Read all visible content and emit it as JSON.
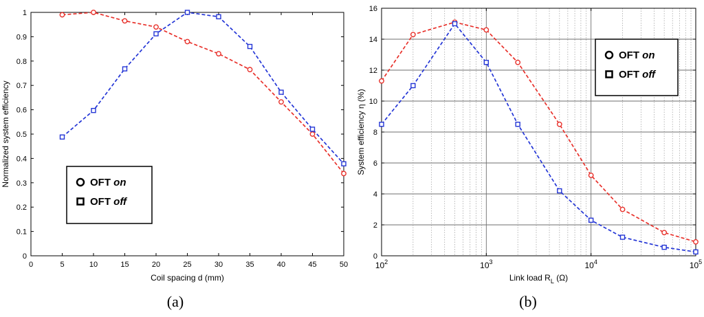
{
  "chart_data": [
    {
      "panel_label": "(a)",
      "type": "line",
      "xlabel": "Coil spacing d (mm)",
      "ylabel": "Normalized system efficiency",
      "xlim": [
        0,
        50
      ],
      "ylim": [
        0,
        1
      ],
      "xticks": [
        0,
        5,
        10,
        15,
        20,
        25,
        30,
        35,
        40,
        45,
        50
      ],
      "yticks": [
        0,
        0.1,
        0.2,
        0.3,
        0.4,
        0.5,
        0.6,
        0.7,
        0.8,
        0.9,
        1
      ],
      "grid": false,
      "legend_position": "lower-left",
      "x": [
        5,
        10,
        15,
        20,
        25,
        30,
        35,
        40,
        45,
        50
      ],
      "series": [
        {
          "name": "OFT on",
          "name_prefix": "OFT",
          "name_emph": "on",
          "marker": "circle",
          "color": "#e8302a",
          "values": [
            0.99,
            1.0,
            0.965,
            0.94,
            0.88,
            0.83,
            0.765,
            0.632,
            0.5,
            0.338
          ]
        },
        {
          "name": "OFT off",
          "name_prefix": "OFT",
          "name_emph": "off",
          "marker": "square",
          "color": "#2335d6",
          "values": [
            0.488,
            0.597,
            0.768,
            0.912,
            1.0,
            0.982,
            0.86,
            0.672,
            0.52,
            0.378
          ]
        }
      ]
    },
    {
      "panel_label": "(b)",
      "type": "line",
      "xlabel": "Link load R",
      "xlabel_sub": "L",
      "xlabel_unit": "(Ω)",
      "ylabel": "System efficiency η (%)",
      "xscale": "log",
      "xlim": [
        100,
        100000
      ],
      "ylim": [
        0,
        16
      ],
      "xticks": [
        100,
        1000,
        10000,
        100000
      ],
      "xtick_labels": [
        {
          "base": "10",
          "exp": "2"
        },
        {
          "base": "10",
          "exp": "3"
        },
        {
          "base": "10",
          "exp": "4"
        },
        {
          "base": "10",
          "exp": "5"
        }
      ],
      "yticks": [
        0,
        2,
        4,
        6,
        8,
        10,
        12,
        14,
        16
      ],
      "grid": true,
      "minor_grid": true,
      "legend_position": "top-right",
      "x": [
        100,
        200,
        500,
        1000,
        2000,
        5000,
        10000,
        20000,
        50000,
        100000
      ],
      "series": [
        {
          "name": "OFT on",
          "name_prefix": "OFT",
          "name_emph": "on",
          "marker": "circle",
          "color": "#e8302a",
          "values": [
            11.3,
            14.3,
            15.1,
            14.6,
            12.5,
            8.5,
            5.2,
            3.0,
            1.5,
            0.9
          ]
        },
        {
          "name": "OFT off",
          "name_prefix": "OFT",
          "name_emph": "off",
          "marker": "square",
          "color": "#2335d6",
          "values": [
            8.5,
            11.0,
            15.0,
            12.5,
            8.5,
            4.2,
            2.3,
            1.2,
            0.55,
            0.25
          ]
        }
      ]
    }
  ]
}
